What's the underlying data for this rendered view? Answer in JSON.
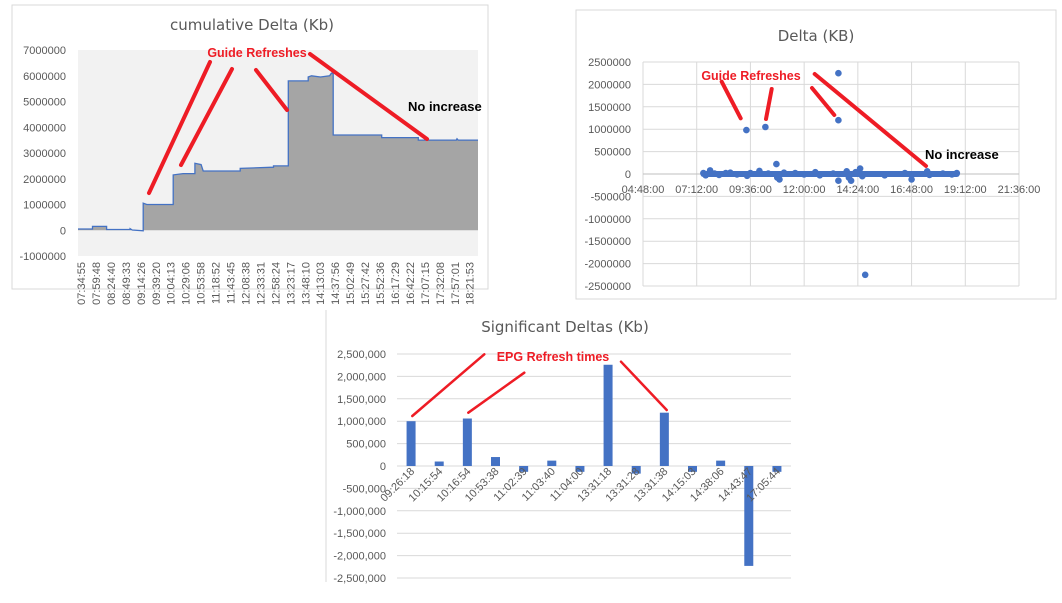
{
  "colors": {
    "series": "#4472c4",
    "area_fill": "#a5a5a5",
    "plot_bg": "#f2f2f2",
    "grid": "#d9d9d9",
    "annotation": "#ee1c25"
  },
  "chart_data": [
    {
      "type": "area",
      "title": "cumulative Delta (Kb)",
      "ylim": [
        -1000000,
        7000000
      ],
      "yticks": [
        "7000000",
        "6000000",
        "5000000",
        "4000000",
        "3000000",
        "2000000",
        "1000000",
        "0",
        "-1000000"
      ],
      "ytick_values": [
        7000000,
        6000000,
        5000000,
        4000000,
        3000000,
        2000000,
        1000000,
        0,
        -1000000
      ],
      "xlabels": [
        "07:34:55",
        "07:59:48",
        "08:24:40",
        "08:49:33",
        "09:14:26",
        "09:39:20",
        "10:04:13",
        "10:29:06",
        "10:53:58",
        "11:18:52",
        "11:43:45",
        "12:08:38",
        "12:33:31",
        "12:58:24",
        "13:23:17",
        "13:48:10",
        "14:13:03",
        "14:37:56",
        "15:02:49",
        "15:27:42",
        "15:52:36",
        "16:17:29",
        "16:42:22",
        "17:07:15",
        "17:32:08",
        "17:57:01",
        "18:21:53"
      ],
      "x_hours_range": [
        7.5,
        18.55
      ],
      "points": [
        [
          7.5,
          50000
        ],
        [
          7.9,
          50000
        ],
        [
          7.9,
          150000
        ],
        [
          8.29,
          150000
        ],
        [
          8.29,
          30000
        ],
        [
          8.94,
          30000
        ],
        [
          8.94,
          60000
        ],
        [
          9.0,
          10000
        ],
        [
          9.3,
          -20000
        ],
        [
          9.3,
          1050000
        ],
        [
          9.4,
          1000000
        ],
        [
          10.13,
          1000000
        ],
        [
          10.13,
          2150000
        ],
        [
          10.4,
          2200000
        ],
        [
          10.73,
          2200000
        ],
        [
          10.73,
          2600000
        ],
        [
          10.9,
          2550000
        ],
        [
          10.96,
          2300000
        ],
        [
          11.98,
          2300000
        ],
        [
          11.98,
          2400000
        ],
        [
          12.9,
          2450000
        ],
        [
          12.9,
          2500000
        ],
        [
          13.31,
          2500000
        ],
        [
          13.31,
          5800000
        ],
        [
          13.86,
          5800000
        ],
        [
          13.86,
          5950000
        ],
        [
          13.95,
          6000000
        ],
        [
          14.2,
          5950000
        ],
        [
          14.45,
          6000000
        ],
        [
          14.5,
          6100000
        ],
        [
          14.55,
          6100000
        ],
        [
          14.55,
          3700000
        ],
        [
          15.89,
          3700000
        ],
        [
          15.89,
          3600000
        ],
        [
          16.9,
          3600000
        ],
        [
          16.9,
          3500000
        ],
        [
          17.95,
          3500000
        ],
        [
          17.97,
          3550000
        ],
        [
          18.0,
          3500000
        ],
        [
          18.55,
          3500000
        ]
      ],
      "annotations": {
        "guide": "Guide Refreshes",
        "no_increase": "No increase"
      }
    },
    {
      "type": "scatter",
      "title": "Delta (KB)",
      "ylim": [
        -2500000,
        2500000
      ],
      "yticks": [
        "2500000",
        "2000000",
        "1500000",
        "1000000",
        "500000",
        "0",
        "-500000",
        "-1000000",
        "-1500000",
        "-2000000",
        "-2500000"
      ],
      "ytick_values": [
        2500000,
        2000000,
        1500000,
        1000000,
        500000,
        0,
        -500000,
        -1000000,
        -1500000,
        -2000000,
        -2500000
      ],
      "xticks": [
        "04:48:00",
        "07:12:00",
        "09:36:00",
        "12:00:00",
        "14:24:00",
        "16:48:00",
        "19:12:00",
        "21:36:00"
      ],
      "xlim_hours": [
        4.8,
        21.6
      ],
      "points": [
        [
          7.5,
          20000
        ],
        [
          7.6,
          -30000
        ],
        [
          7.8,
          80000
        ],
        [
          8.0,
          10000
        ],
        [
          8.2,
          -20000
        ],
        [
          8.5,
          20000
        ],
        [
          8.7,
          30000
        ],
        [
          9.0,
          -10000
        ],
        [
          9.42,
          980000
        ],
        [
          9.45,
          -40000
        ],
        [
          9.6,
          20000
        ],
        [
          10.0,
          70000
        ],
        [
          10.27,
          1050000
        ],
        [
          10.4,
          10000
        ],
        [
          10.76,
          220000
        ],
        [
          10.8,
          -80000
        ],
        [
          10.9,
          -120000
        ],
        [
          11.1,
          30000
        ],
        [
          11.6,
          20000
        ],
        [
          12.0,
          -10000
        ],
        [
          12.5,
          40000
        ],
        [
          12.7,
          -30000
        ],
        [
          13.3,
          10000
        ],
        [
          13.53,
          2250000
        ],
        [
          13.53,
          1200000
        ],
        [
          13.53,
          -150000
        ],
        [
          13.9,
          60000
        ],
        [
          14.0,
          -80000
        ],
        [
          14.1,
          -150000
        ],
        [
          14.3,
          40000
        ],
        [
          14.5,
          120000
        ],
        [
          14.6,
          -50000
        ],
        [
          14.73,
          -2250000
        ],
        [
          15.6,
          -30000
        ],
        [
          16.5,
          20000
        ],
        [
          16.8,
          -120000
        ],
        [
          17.5,
          60000
        ],
        [
          17.6,
          -20000
        ],
        [
          18.2,
          10000
        ],
        [
          18.6,
          -10000
        ],
        [
          18.82,
          20000
        ]
      ],
      "annotations": {
        "guide": "Guide Refreshes",
        "no_increase": "No increase"
      }
    },
    {
      "type": "bar",
      "title": "Significant Deltas (Kb)",
      "ylim": [
        -2500000,
        2500000
      ],
      "yticks": [
        "2,500,000",
        "2,000,000",
        "1,500,000",
        "1,000,000",
        "500,000",
        "0",
        "-500,000",
        "-1,000,000",
        "-1,500,000",
        "-2,000,000",
        "-2,500,000"
      ],
      "ytick_values": [
        2500000,
        2000000,
        1500000,
        1000000,
        500000,
        0,
        -500000,
        -1000000,
        -1500000,
        -2000000,
        -2500000
      ],
      "categories": [
        "09:26:18",
        "10:15:54",
        "10:16:54",
        "10:53:38",
        "11:02:39",
        "11:03:40",
        "11:04:00",
        "13:31:18",
        "13:31:28",
        "13:31:38",
        "14:15:03",
        "14:38:06",
        "14:43:47",
        "17:05:44"
      ],
      "values": [
        1000000,
        100000,
        1060000,
        200000,
        -130000,
        120000,
        -130000,
        2260000,
        -170000,
        1190000,
        -130000,
        120000,
        -2230000,
        -130000
      ],
      "annotations": {
        "epg": "EPG Refresh times"
      }
    }
  ]
}
